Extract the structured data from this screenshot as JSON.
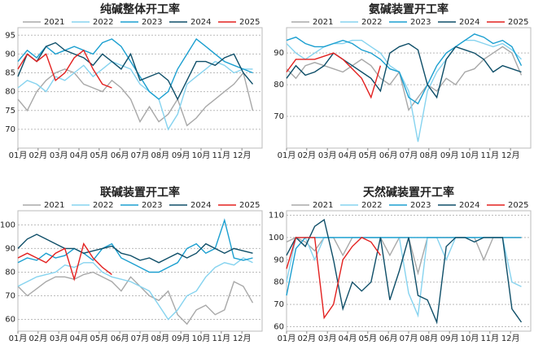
{
  "chart_data": [
    {
      "type": "line",
      "title": "纯碱整体开工率",
      "x": [
        0,
        2,
        4,
        6,
        8,
        10,
        12,
        14,
        16,
        18,
        20,
        22,
        24,
        26,
        28,
        30,
        32,
        34,
        36,
        38,
        40,
        42,
        44,
        46,
        48,
        50
      ],
      "xlim": [
        0,
        52
      ],
      "xticks": [
        {
          "value": 0,
          "label": "01月"
        },
        {
          "value": 4.3,
          "label": "02月"
        },
        {
          "value": 8.7,
          "label": "03月"
        },
        {
          "value": 13,
          "label": "04月"
        },
        {
          "value": 17.3,
          "label": "05月"
        },
        {
          "value": 21.7,
          "label": "06月"
        },
        {
          "value": 26,
          "label": "07月"
        },
        {
          "value": 30.3,
          "label": "08月"
        },
        {
          "value": 34.7,
          "label": "09月"
        },
        {
          "value": 39,
          "label": "10月"
        },
        {
          "value": 43.3,
          "label": "11月"
        },
        {
          "value": 47.7,
          "label": "12月"
        }
      ],
      "ylim": [
        65,
        97
      ],
      "yticks": [
        70,
        75,
        80,
        85,
        90,
        95
      ],
      "grid": true,
      "series": [
        {
          "name": "2021",
          "color": "#a8a8a8",
          "values": [
            78,
            75,
            80,
            83,
            85,
            86,
            85,
            82,
            81,
            80,
            83,
            81,
            78,
            72,
            76,
            72,
            74,
            78,
            71,
            73,
            76,
            78,
            80,
            82,
            85,
            75
          ]
        },
        {
          "name": "2022",
          "color": "#86d3ef",
          "values": [
            81,
            83,
            82,
            80,
            84,
            83,
            85,
            87,
            84,
            86,
            88,
            87,
            86,
            82,
            80,
            78,
            70,
            74,
            82,
            84,
            86,
            88,
            87,
            85,
            86,
            86
          ]
        },
        {
          "name": "2023",
          "color": "#1b9fd0",
          "values": [
            88,
            91,
            89,
            92,
            90,
            91,
            92,
            91,
            90,
            93,
            94,
            92,
            88,
            84,
            80,
            78,
            80,
            86,
            90,
            94,
            92,
            90,
            88,
            87,
            86,
            85
          ]
        },
        {
          "name": "2024",
          "color": "#0e4e68",
          "values": [
            84,
            90,
            88,
            92,
            93,
            91,
            90,
            89,
            87,
            90,
            88,
            86,
            90,
            83,
            84,
            85,
            83,
            78,
            83,
            88,
            88,
            87,
            89,
            90,
            85,
            82
          ]
        },
        {
          "name": "2025",
          "color": "#e3201f",
          "values": [
            86,
            90,
            88,
            90,
            83,
            85,
            89,
            91,
            86,
            82,
            81,
            null,
            null,
            null,
            null,
            null,
            null,
            null,
            null,
            null,
            null,
            null,
            null,
            null,
            null,
            null
          ]
        }
      ]
    },
    {
      "type": "line",
      "title": "氨碱装置开工率",
      "x": [
        0,
        2,
        4,
        6,
        8,
        10,
        12,
        14,
        16,
        18,
        20,
        22,
        24,
        26,
        28,
        30,
        32,
        34,
        36,
        38,
        40,
        42,
        44,
        46,
        48,
        50
      ],
      "xlim": [
        0,
        52
      ],
      "xticks": [
        {
          "value": 0,
          "label": "01月"
        },
        {
          "value": 4.3,
          "label": "02月"
        },
        {
          "value": 8.7,
          "label": "03月"
        },
        {
          "value": 13,
          "label": "04月"
        },
        {
          "value": 17.3,
          "label": "05月"
        },
        {
          "value": 21.7,
          "label": "06月"
        },
        {
          "value": 26,
          "label": "07月"
        },
        {
          "value": 30.3,
          "label": "08月"
        },
        {
          "value": 34.7,
          "label": "09月"
        },
        {
          "value": 39,
          "label": "10月"
        },
        {
          "value": 43.3,
          "label": "11月"
        },
        {
          "value": 47.7,
          "label": "12月"
        }
      ],
      "ylim": [
        60,
        98
      ],
      "yticks": [
        70,
        80,
        90
      ],
      "grid": true,
      "series": [
        {
          "name": "2021",
          "color": "#a8a8a8",
          "values": [
            85,
            82,
            86,
            87,
            86,
            85,
            84,
            86,
            88,
            86,
            82,
            80,
            84,
            72,
            76,
            80,
            78,
            82,
            80,
            84,
            85,
            88,
            90,
            92,
            90,
            83
          ]
        },
        {
          "name": "2022",
          "color": "#86d3ef",
          "values": [
            93,
            90,
            88,
            90,
            92,
            93,
            93,
            94,
            94,
            92,
            90,
            86,
            84,
            78,
            62,
            78,
            84,
            88,
            92,
            94,
            94,
            93,
            92,
            93,
            91,
            88
          ]
        },
        {
          "name": "2023",
          "color": "#1b9fd0",
          "values": [
            94,
            95,
            93,
            92,
            92,
            93,
            94,
            93,
            91,
            90,
            88,
            85,
            84,
            76,
            74,
            80,
            86,
            90,
            92,
            94,
            96,
            95,
            93,
            94,
            92,
            86
          ]
        },
        {
          "name": "2024",
          "color": "#0e4e68",
          "values": [
            82,
            86,
            83,
            84,
            86,
            90,
            88,
            86,
            84,
            82,
            78,
            90,
            92,
            93,
            91,
            80,
            76,
            88,
            92,
            91,
            90,
            88,
            84,
            86,
            85,
            84
          ]
        },
        {
          "name": "2025",
          "color": "#e3201f",
          "values": [
            84,
            88,
            88,
            88,
            89,
            90,
            88,
            85,
            82,
            76,
            86,
            null,
            null,
            null,
            null,
            null,
            null,
            null,
            null,
            null,
            null,
            null,
            null,
            null,
            null,
            null
          ]
        }
      ]
    },
    {
      "type": "line",
      "title": "联碱装置开工率",
      "x": [
        0,
        2,
        4,
        6,
        8,
        10,
        12,
        14,
        16,
        18,
        20,
        22,
        24,
        26,
        28,
        30,
        32,
        34,
        36,
        38,
        40,
        42,
        44,
        46,
        48,
        50
      ],
      "xlim": [
        0,
        52
      ],
      "xticks": [
        {
          "value": 0,
          "label": "01月"
        },
        {
          "value": 4.3,
          "label": "02月"
        },
        {
          "value": 8.7,
          "label": "03月"
        },
        {
          "value": 13,
          "label": "04月"
        },
        {
          "value": 17.3,
          "label": "05月"
        },
        {
          "value": 21.7,
          "label": "06月"
        },
        {
          "value": 26,
          "label": "07月"
        },
        {
          "value": 30.3,
          "label": "08月"
        },
        {
          "value": 34.7,
          "label": "09月"
        },
        {
          "value": 39,
          "label": "10月"
        },
        {
          "value": 43.3,
          "label": "11月"
        },
        {
          "value": 47.7,
          "label": "12月"
        }
      ],
      "ylim": [
        55,
        106
      ],
      "yticks": [
        60,
        70,
        80,
        90,
        100
      ],
      "grid": true,
      "series": [
        {
          "name": "2021",
          "color": "#a8a8a8",
          "values": [
            74,
            70,
            73,
            76,
            78,
            78,
            77,
            79,
            80,
            78,
            76,
            72,
            78,
            74,
            70,
            68,
            72,
            62,
            58,
            64,
            66,
            62,
            64,
            76,
            74,
            67
          ]
        },
        {
          "name": "2022",
          "color": "#86d3ef",
          "values": [
            74,
            76,
            78,
            79,
            80,
            83,
            82,
            84,
            84,
            80,
            78,
            77,
            76,
            74,
            72,
            66,
            60,
            64,
            70,
            72,
            78,
            82,
            84,
            83,
            86,
            84
          ]
        },
        {
          "name": "2023",
          "color": "#1b9fd0",
          "values": [
            84,
            86,
            85,
            88,
            86,
            87,
            90,
            88,
            85,
            90,
            92,
            86,
            84,
            82,
            80,
            80,
            82,
            84,
            90,
            92,
            88,
            90,
            102,
            86,
            85,
            86
          ]
        },
        {
          "name": "2024",
          "color": "#0e4e68",
          "values": [
            90,
            94,
            96,
            94,
            92,
            90,
            90,
            88,
            89,
            90,
            91,
            88,
            87,
            85,
            86,
            84,
            86,
            88,
            86,
            88,
            92,
            90,
            88,
            90,
            89,
            88
          ]
        },
        {
          "name": "2025",
          "color": "#e3201f",
          "values": [
            86,
            88,
            86,
            84,
            88,
            90,
            77,
            92,
            86,
            82,
            79,
            null,
            null,
            null,
            null,
            null,
            null,
            null,
            null,
            null,
            null,
            null,
            null,
            null,
            null,
            null
          ]
        }
      ]
    },
    {
      "type": "line",
      "title": "天然碱装置开工率",
      "x": [
        0,
        2,
        4,
        6,
        8,
        10,
        12,
        14,
        16,
        18,
        20,
        22,
        24,
        26,
        28,
        30,
        32,
        34,
        36,
        38,
        40,
        42,
        44,
        46,
        48,
        50
      ],
      "xlim": [
        0,
        52
      ],
      "xticks": [
        {
          "value": 0,
          "label": "01月"
        },
        {
          "value": 4.3,
          "label": "02月"
        },
        {
          "value": 8.7,
          "label": "03月"
        },
        {
          "value": 13,
          "label": "04月"
        },
        {
          "value": 17.3,
          "label": "05月"
        },
        {
          "value": 21.7,
          "label": "06月"
        },
        {
          "value": 26,
          "label": "07月"
        },
        {
          "value": 30.3,
          "label": "08月"
        },
        {
          "value": 34.7,
          "label": "09月"
        },
        {
          "value": 39,
          "label": "10月"
        },
        {
          "value": 43.3,
          "label": "11月"
        },
        {
          "value": 47.7,
          "label": "12月"
        }
      ],
      "ylim": [
        58,
        112
      ],
      "yticks": [
        60,
        70,
        80,
        90,
        100,
        110
      ],
      "grid": true,
      "series": [
        {
          "name": "2021",
          "color": "#a8a8a8",
          "values": [
            98,
            100,
            98,
            94,
            100,
            100,
            92,
            100,
            100,
            100,
            100,
            92,
            100,
            100,
            84,
            100,
            100,
            100,
            100,
            100,
            100,
            90,
            100,
            100,
            100,
            100
          ]
        },
        {
          "name": "2022",
          "color": "#86d3ef",
          "values": [
            80,
            100,
            100,
            90,
            100,
            100,
            100,
            100,
            100,
            100,
            100,
            100,
            100,
            75,
            65,
            100,
            100,
            90,
            100,
            100,
            100,
            100,
            100,
            100,
            80,
            78
          ]
        },
        {
          "name": "2023",
          "color": "#1b9fd0",
          "values": [
            74,
            95,
            100,
            100,
            100,
            100,
            100,
            100,
            100,
            100,
            100,
            100,
            100,
            100,
            100,
            100,
            100,
            100,
            100,
            100,
            100,
            100,
            100,
            100,
            100,
            100
          ]
        },
        {
          "name": "2024",
          "color": "#0e4e68",
          "values": [
            92,
            100,
            96,
            105,
            108,
            90,
            68,
            80,
            76,
            80,
            100,
            72,
            85,
            100,
            74,
            72,
            62,
            96,
            100,
            100,
            98,
            100,
            100,
            100,
            68,
            62
          ]
        },
        {
          "name": "2025",
          "color": "#e3201f",
          "values": [
            86,
            100,
            100,
            100,
            64,
            70,
            90,
            96,
            100,
            98,
            92,
            null,
            null,
            null,
            null,
            null,
            null,
            null,
            null,
            null,
            null,
            null,
            null,
            null,
            null,
            null
          ]
        }
      ]
    }
  ]
}
